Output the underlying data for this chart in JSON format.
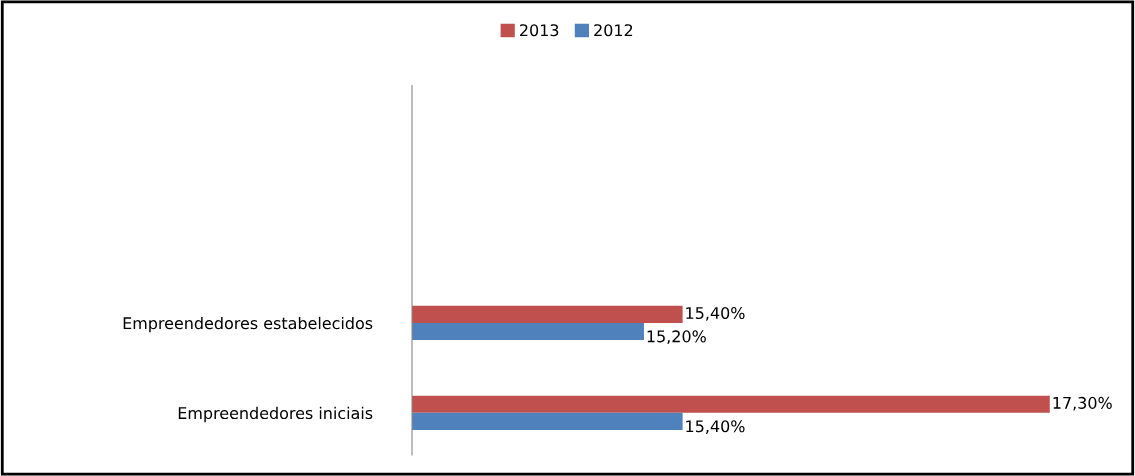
{
  "chart_data": {
    "type": "bar",
    "orientation": "horizontal",
    "categories": [
      "Empreendedores estabelecidos",
      "Empreendedores iniciais"
    ],
    "series": [
      {
        "name": "2013",
        "color": "#c0504d",
        "values": [
          15.4,
          17.3
        ],
        "value_labels": [
          "15,40%",
          "17,30%"
        ]
      },
      {
        "name": "2012",
        "color": "#4f81bd",
        "values": [
          15.2,
          15.4
        ],
        "value_labels": [
          "15,20%",
          "15,40%"
        ]
      }
    ],
    "xlim": [
      14,
      17.3
    ],
    "tick_labels": "y",
    "grid": false,
    "legend": "top"
  }
}
